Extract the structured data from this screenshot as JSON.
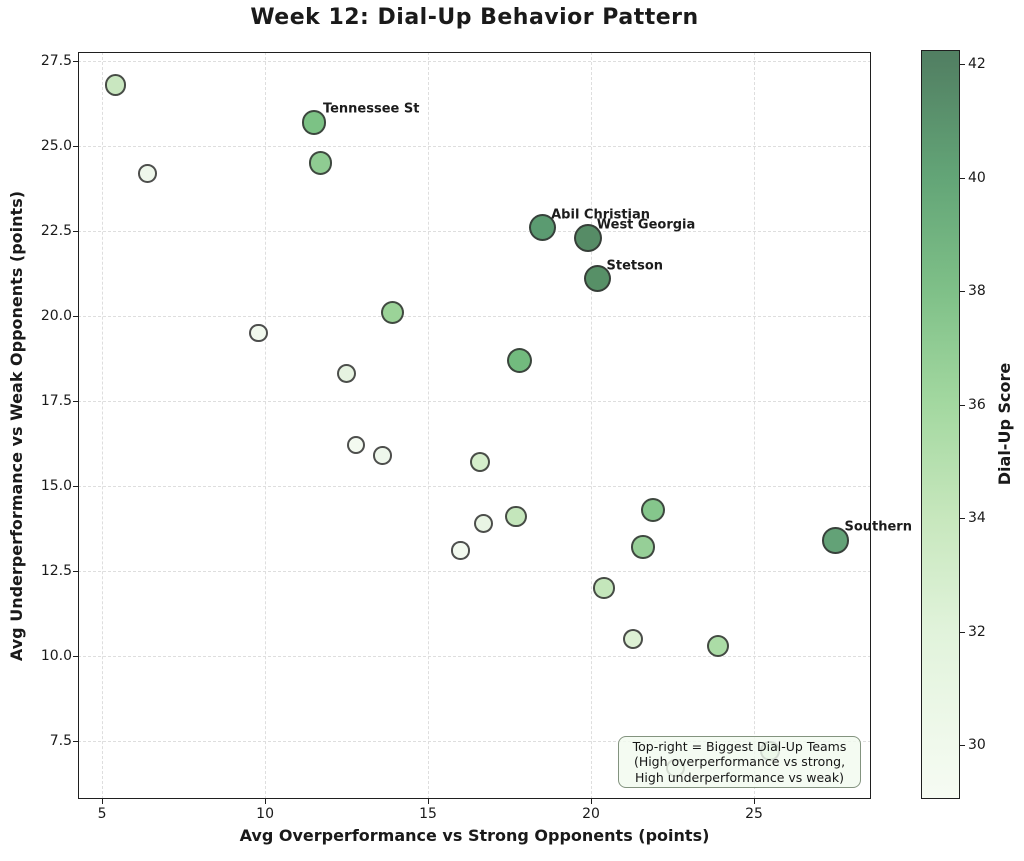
{
  "title": "Week 12: Dial-Up Behavior Pattern",
  "chart_data": {
    "type": "scatter",
    "title": "Week 12: Dial-Up Behavior Pattern",
    "xlabel": "Avg Overperformance vs Strong Opponents (points)",
    "ylabel": "Avg Underperformance vs Weak Opponents (points)",
    "xlim": [
      4.26,
      28.59
    ],
    "ylim": [
      5.79,
      27.77
    ],
    "x_ticks": [
      "5",
      "10",
      "15",
      "20",
      "25"
    ],
    "y_ticks": [
      "7.5",
      "10.0",
      "12.5",
      "15.0",
      "17.5",
      "20.0",
      "22.5",
      "25.0",
      "27.5"
    ],
    "grid": "dashed",
    "points": [
      {
        "x": 5.4,
        "y": 26.8,
        "score": 33.2,
        "color": "#c9e7c0",
        "label": ""
      },
      {
        "x": 6.4,
        "y": 24.2,
        "score": 30.1,
        "color": "#eef7eb",
        "label": ""
      },
      {
        "x": 11.5,
        "y": 25.7,
        "score": 37.7,
        "color": "#7cc285",
        "label": "Tennessee St"
      },
      {
        "x": 11.7,
        "y": 24.5,
        "score": 36.6,
        "color": "#8fcc92",
        "label": ""
      },
      {
        "x": 18.5,
        "y": 22.6,
        "score": 41.0,
        "color": "#5b9b71",
        "label": "Abil Christian"
      },
      {
        "x": 19.9,
        "y": 22.3,
        "score": 42.2,
        "color": "#568c66",
        "label": "West Georgia"
      },
      {
        "x": 20.2,
        "y": 21.1,
        "score": 41.8,
        "color": "#579067",
        "label": "Stetson"
      },
      {
        "x": 13.9,
        "y": 20.1,
        "score": 35.8,
        "color": "#9bd398",
        "label": ""
      },
      {
        "x": 9.8,
        "y": 19.5,
        "score": 29.4,
        "color": "#f1f9ee",
        "label": ""
      },
      {
        "x": 12.5,
        "y": 18.3,
        "score": 30.6,
        "color": "#e6f3e1",
        "label": ""
      },
      {
        "x": 17.8,
        "y": 18.7,
        "score": 38.4,
        "color": "#72bb7e",
        "label": ""
      },
      {
        "x": 12.8,
        "y": 16.2,
        "score": 29.3,
        "color": "#f3faf0",
        "label": ""
      },
      {
        "x": 13.6,
        "y": 15.9,
        "score": 29.7,
        "color": "#eef7eb",
        "label": ""
      },
      {
        "x": 16.6,
        "y": 15.7,
        "score": 32.4,
        "color": "#d5eecb",
        "label": ""
      },
      {
        "x": 16.7,
        "y": 13.9,
        "score": 30.4,
        "color": "#e9f5e4",
        "label": ""
      },
      {
        "x": 17.7,
        "y": 14.1,
        "score": 33.6,
        "color": "#c4e6bb",
        "label": ""
      },
      {
        "x": 21.9,
        "y": 14.3,
        "score": 37.1,
        "color": "#85c68c",
        "label": ""
      },
      {
        "x": 16.0,
        "y": 13.1,
        "score": 29.4,
        "color": "#f2f9ef",
        "label": ""
      },
      {
        "x": 21.6,
        "y": 13.2,
        "score": 36.2,
        "color": "#96cf97",
        "label": ""
      },
      {
        "x": 27.5,
        "y": 13.4,
        "score": 40.3,
        "color": "#63a277",
        "label": "Southern"
      },
      {
        "x": 20.4,
        "y": 12.0,
        "score": 33.5,
        "color": "#c4e6bb",
        "label": ""
      },
      {
        "x": 21.3,
        "y": 10.5,
        "score": 31.6,
        "color": "#ddf1d4",
        "label": ""
      },
      {
        "x": 23.9,
        "y": 10.3,
        "score": 34.9,
        "color": "#abdca6",
        "label": ""
      },
      {
        "x": 22.6,
        "y": 6.7,
        "score": 30.0,
        "color": "#eef7eb",
        "label": ""
      },
      {
        "x": 25.5,
        "y": 7.2,
        "score": 31.9,
        "color": "#d9efd2",
        "label": ""
      }
    ],
    "colorbar": {
      "label": "Dial-Up Score",
      "min": 29.05,
      "max": 42.25,
      "ticks": [
        "30",
        "32",
        "34",
        "36",
        "38",
        "40",
        "42"
      ],
      "gradient_stops": [
        {
          "v": 42.25,
          "c": "#517f62"
        },
        {
          "v": 42.0,
          "c": "#538264"
        },
        {
          "v": 40.0,
          "c": "#63a577"
        },
        {
          "v": 38.0,
          "c": "#7fc088"
        },
        {
          "v": 36.0,
          "c": "#a3d8a0"
        },
        {
          "v": 34.0,
          "c": "#c7e7bd"
        },
        {
          "v": 32.0,
          "c": "#e1f3db"
        },
        {
          "v": 30.0,
          "c": "#f0f9ec"
        },
        {
          "v": 29.05,
          "c": "#f6fbf3"
        }
      ]
    },
    "annotation_box": {
      "text": "Top-right = Biggest Dial-Up Teams\n(High overperformance vs strong,\nHigh underperformance vs weak)",
      "background": "#f2faef",
      "border_color": "#83937f"
    }
  }
}
